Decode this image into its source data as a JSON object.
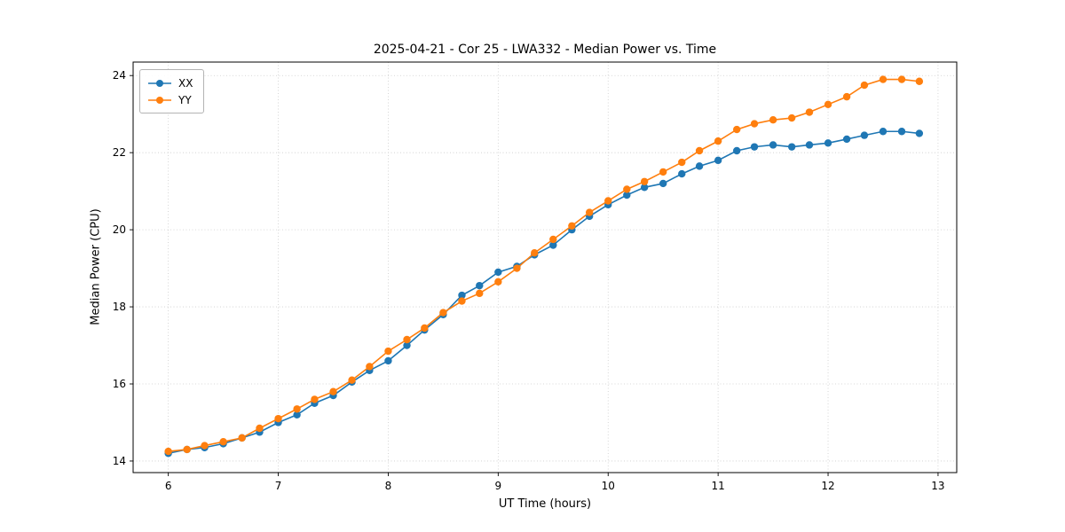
{
  "figure": {
    "title": "2025-04-21 - Cor 25 - LWA332 - Median Power vs. Time",
    "xlabel": "UT Time (hours)",
    "ylabel": "Median Power (CPU)"
  },
  "chart_data": {
    "type": "line",
    "title": "2025-04-21 - Cor 25 - LWA332 - Median Power vs. Time",
    "xlabel": "UT Time (hours)",
    "ylabel": "Median Power (CPU)",
    "grid": true,
    "legend_position": "upper-left",
    "xlim": [
      5.68,
      13.17
    ],
    "ylim": [
      13.7,
      24.35
    ],
    "xticks": [
      6,
      7,
      8,
      9,
      10,
      11,
      12,
      13
    ],
    "yticks": [
      14,
      16,
      18,
      20,
      22,
      24
    ],
    "x": [
      6.0,
      6.17,
      6.33,
      6.5,
      6.67,
      6.83,
      7.0,
      7.17,
      7.33,
      7.5,
      7.67,
      7.83,
      8.0,
      8.17,
      8.33,
      8.5,
      8.67,
      8.83,
      9.0,
      9.17,
      9.33,
      9.5,
      9.67,
      9.83,
      10.0,
      10.17,
      10.33,
      10.5,
      10.67,
      10.83,
      11.0,
      11.17,
      11.33,
      11.5,
      11.67,
      11.83,
      12.0,
      12.17,
      12.33,
      12.5,
      12.67,
      12.83
    ],
    "series": [
      {
        "name": "XX",
        "color": "#1f77b4",
        "values": [
          14.2,
          14.3,
          14.35,
          14.45,
          14.6,
          14.75,
          15.0,
          15.2,
          15.5,
          15.7,
          16.05,
          16.35,
          16.6,
          17.0,
          17.4,
          17.8,
          18.3,
          18.55,
          18.9,
          19.05,
          19.35,
          19.6,
          20.0,
          20.35,
          20.65,
          20.9,
          21.1,
          21.2,
          21.45,
          21.65,
          21.8,
          22.05,
          22.15,
          22.2,
          22.15,
          22.2,
          22.25,
          22.35,
          22.45,
          22.55,
          22.55,
          22.5
        ]
      },
      {
        "name": "YY",
        "color": "#ff7f0e",
        "values": [
          14.25,
          14.3,
          14.4,
          14.5,
          14.6,
          14.85,
          15.1,
          15.35,
          15.6,
          15.8,
          16.1,
          16.45,
          16.85,
          17.15,
          17.45,
          17.85,
          18.15,
          18.35,
          18.65,
          19.0,
          19.4,
          19.75,
          20.1,
          20.45,
          20.75,
          21.05,
          21.25,
          21.5,
          21.75,
          22.05,
          22.3,
          22.6,
          22.75,
          22.85,
          22.9,
          23.05,
          23.25,
          23.45,
          23.75,
          23.9,
          23.9,
          23.85
        ]
      }
    ],
    "styles": {
      "grid_color": "#cccccc",
      "axis_color": "#000000",
      "background": "#ffffff",
      "marker": "circle",
      "marker_radius": 4.2,
      "line_width": 1.6
    }
  }
}
